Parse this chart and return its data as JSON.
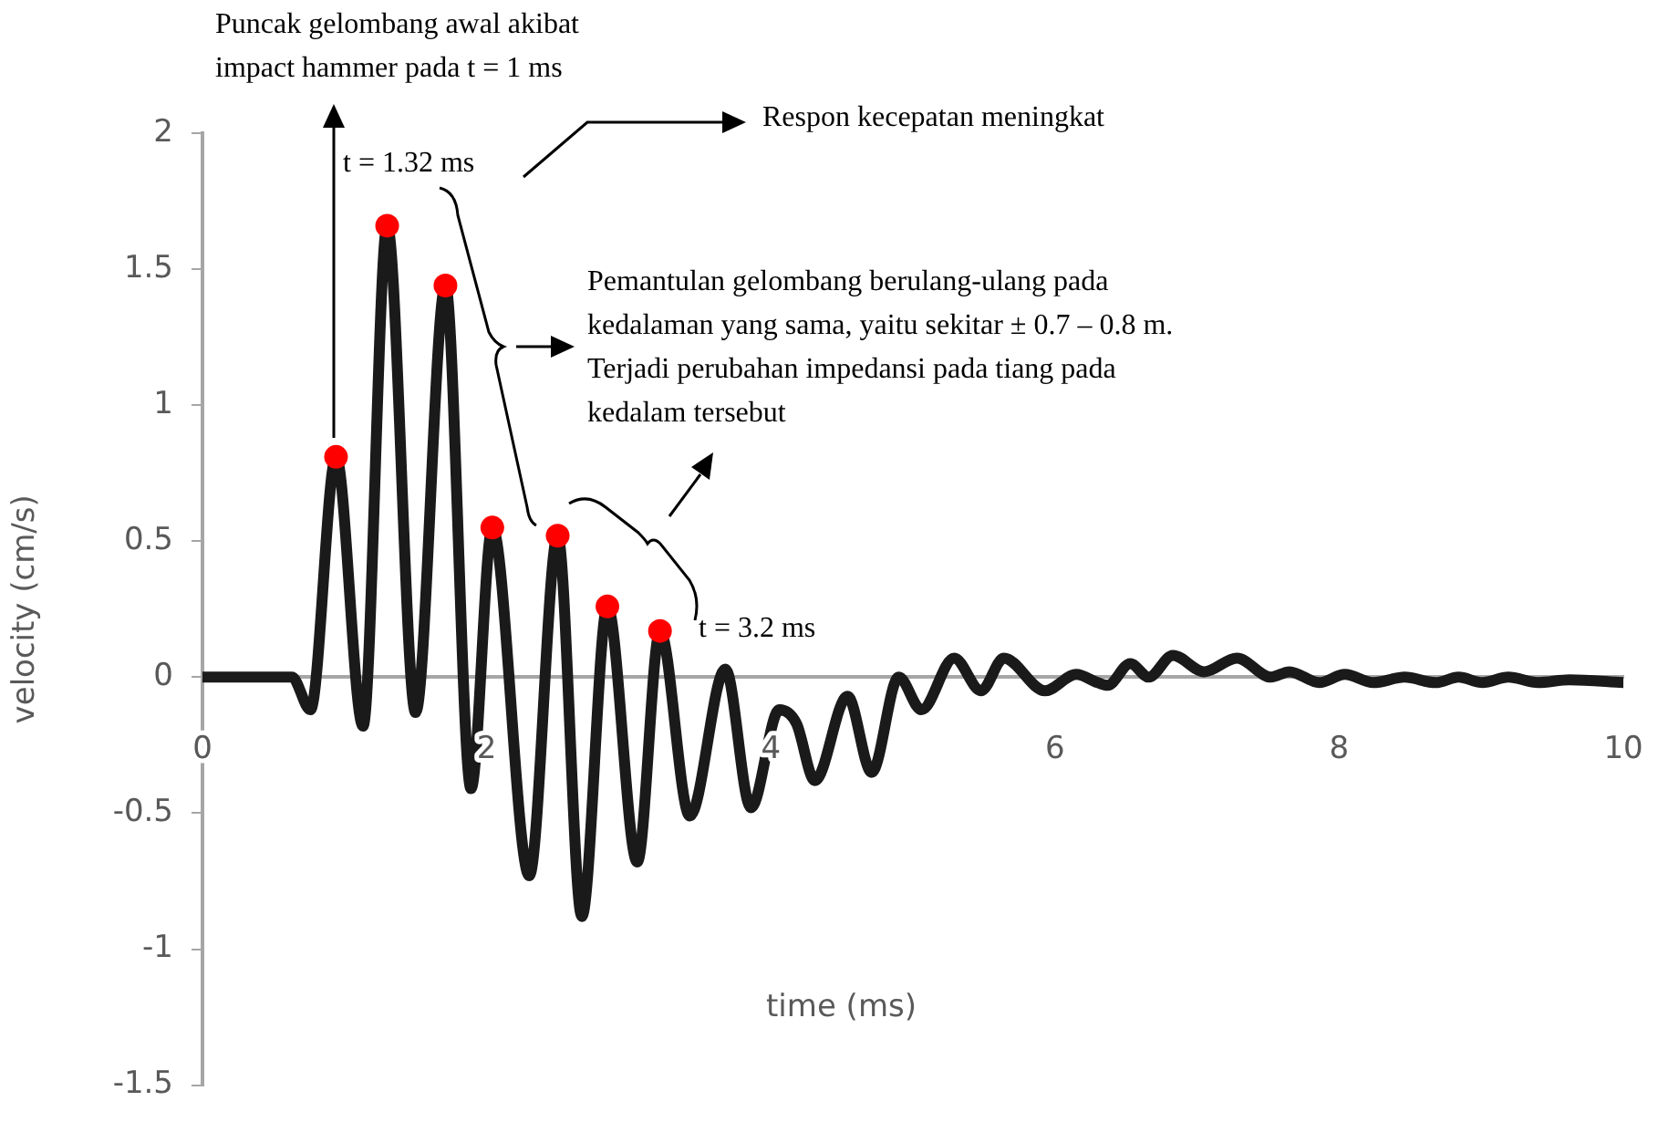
{
  "chart_data": {
    "type": "line",
    "xlabel": "time (ms)",
    "ylabel": "velocity (cm/s)",
    "xlim": [
      0,
      10
    ],
    "xticks": [
      0,
      2,
      4,
      6,
      8,
      10
    ],
    "ylim": [
      -1.5,
      2
    ],
    "yticks": [
      -1.5,
      -1,
      -0.5,
      0,
      0.5,
      1,
      1.5,
      2
    ],
    "grid": false,
    "legend": false,
    "series": [
      {
        "type": "line",
        "color": "#1a1a1a",
        "x": [
          0,
          0.3,
          0.63,
          0.76,
          0.94,
          1.13,
          1.3,
          1.5,
          1.71,
          1.89,
          2.04,
          2.3,
          2.5,
          2.67,
          2.85,
          3.06,
          3.22,
          3.43,
          3.68,
          3.86,
          4.06,
          4.18,
          4.31,
          4.54,
          4.71,
          4.9,
          5.06,
          5.29,
          5.48,
          5.64,
          5.93,
          6.15,
          6.3,
          6.37,
          6.53,
          6.66,
          6.83,
          7.05,
          7.28,
          7.52,
          7.65,
          7.86,
          8.04,
          8.24,
          8.46,
          8.68,
          8.84,
          9.01,
          9.19,
          9.4,
          9.62,
          10
        ],
        "values": [
          0,
          0,
          0,
          -0.12,
          0.81,
          -0.18,
          1.66,
          -0.13,
          1.44,
          -0.41,
          0.55,
          -0.73,
          0.52,
          -0.88,
          0.26,
          -0.68,
          0.17,
          -0.51,
          0.03,
          -0.48,
          -0.12,
          -0.17,
          -0.38,
          -0.07,
          -0.35,
          0,
          -0.12,
          0.07,
          -0.05,
          0.07,
          -0.05,
          0.01,
          -0.02,
          -0.03,
          0.05,
          0,
          0.08,
          0.02,
          0.07,
          0,
          0.02,
          -0.02,
          0.01,
          -0.02,
          0,
          -0.02,
          0,
          -0.02,
          0,
          -0.02,
          -0.01,
          -0.02
        ]
      },
      {
        "type": "scatter",
        "color": "#ff0000",
        "x": [
          0.94,
          1.3,
          1.71,
          2.04,
          2.5,
          2.85,
          3.22
        ],
        "values": [
          0.81,
          1.66,
          1.44,
          0.55,
          0.52,
          0.26,
          0.17
        ]
      }
    ],
    "annotations": [
      "Puncak gelombang awal akibat impact hammer pada t = 1 ms",
      "t = 1.32 ms",
      "Respon kecepatan meningkat",
      "Pemantulan gelombang berulang-ulang pada kedalaman yang sama, yaitu sekitar ± 0.7 – 0.8 m. Terjadi perubahan impedansi pada tiang pada kedalam tersebut",
      "t = 3.2 ms"
    ]
  }
}
